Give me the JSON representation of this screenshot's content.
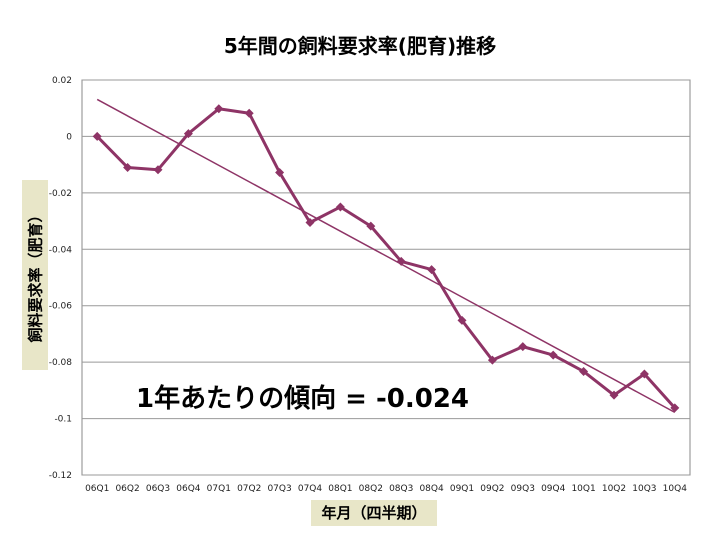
{
  "chart_data": {
    "type": "line",
    "title": "5年間の飼料要求率(肥育)推移",
    "xlabel": "年月（四半期）",
    "ylabel": "飼料要求率（肥育）",
    "annotation": "1年あたりの傾向 = -0.024",
    "categories": [
      "06Q1",
      "06Q2",
      "06Q3",
      "06Q4",
      "07Q1",
      "07Q2",
      "07Q3",
      "07Q4",
      "08Q1",
      "08Q2",
      "08Q3",
      "08Q4",
      "09Q1",
      "09Q2",
      "09Q3",
      "09Q4",
      "10Q1",
      "10Q2",
      "10Q3",
      "10Q4"
    ],
    "y_ticks": [
      "0.02",
      "0",
      "-0.02",
      "-0.04",
      "-0.06",
      "-0.08",
      "-0.1",
      "-0.12"
    ],
    "ylim": [
      -0.12,
      0.02
    ],
    "grid": true,
    "series": [
      {
        "values": [
          0.0,
          -0.011,
          -0.0118,
          0.001,
          0.0098,
          0.0082,
          -0.0128,
          -0.0305,
          -0.025,
          -0.0318,
          -0.0443,
          -0.0472,
          -0.0652,
          -0.0793,
          -0.0745,
          -0.0775,
          -0.0833,
          -0.0917,
          -0.0842,
          -0.0962
        ],
        "color": "#8e3466",
        "marker": "diamond"
      }
    ],
    "trendline": {
      "start": 0.0131,
      "end": -0.0978,
      "color": "#8e3466"
    }
  }
}
